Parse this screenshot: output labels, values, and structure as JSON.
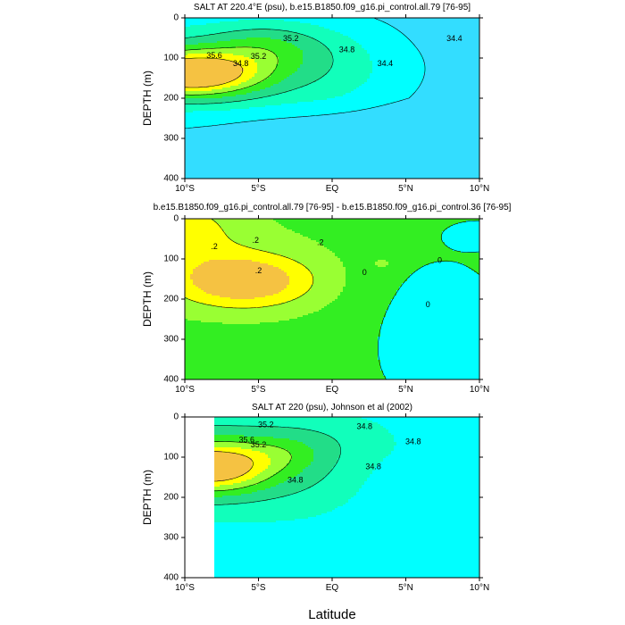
{
  "chart_data": [
    {
      "type": "contour",
      "title": "SALT AT 220.4°E (psu), b.e15.B1850.f09_g16.pi_control.all.79 [76-95]",
      "xlabel": "",
      "ylabel": "DEPTH (m)",
      "xticks": [
        "10°S",
        "5°S",
        "EQ",
        "5°N",
        "10°N"
      ],
      "xlim": [
        -10,
        10
      ],
      "yticks": [
        "0",
        "100",
        "200",
        "300",
        "400"
      ],
      "ylim": [
        400,
        0
      ],
      "contour_labels": [
        "35.6",
        "35.2",
        "35.2",
        "34.8",
        "34.8",
        "34.4",
        "34.4"
      ],
      "max_salinity_core": {
        "lat": -9.5,
        "depth": 140,
        "value": 35.8
      }
    },
    {
      "type": "contour",
      "title": "b.e15.B1850.f09_g16.pi_control.all.79 [76-95] - b.e15.B1850.f09_g16.pi_control.36 [76-95]",
      "xlabel": "",
      "ylabel": "DEPTH (m)",
      "xticks": [
        "10°S",
        "5°S",
        "EQ",
        "5°N",
        "10°N"
      ],
      "xlim": [
        -10,
        10
      ],
      "yticks": [
        "0",
        "100",
        "200",
        "300",
        "400"
      ],
      "ylim": [
        400,
        0
      ],
      "contour_labels": [
        ".2",
        ".2",
        ".2",
        ".2",
        "0",
        "0",
        "0"
      ],
      "max_difference_core": {
        "lat": -5.5,
        "depth": 155,
        "value": 0.5
      }
    },
    {
      "type": "contour",
      "title": "SALT AT 220 (psu), Johnson et al (2002)",
      "xlabel": "Latitude",
      "ylabel": "DEPTH (m)",
      "xticks": [
        "10°S",
        "5°S",
        "EQ",
        "5°N",
        "10°N"
      ],
      "xlim": [
        -10,
        10
      ],
      "yticks": [
        "0",
        "100",
        "200",
        "300",
        "400"
      ],
      "ylim": [
        400,
        0
      ],
      "contour_labels": [
        "35.2",
        "35.6",
        "35.2",
        "34.8",
        "34.8",
        "34.8",
        "34.8"
      ],
      "data_lat_range": [
        -8,
        10
      ],
      "max_salinity_core": {
        "lat": -7.8,
        "depth": 125,
        "value": 35.7
      }
    }
  ],
  "palette": {
    "high": "#f5c242",
    "yellow": "#ffff00",
    "lightgreen": "#99ff33",
    "green": "#33ee22",
    "seagreen": "#22dd88",
    "aqua": "#11ffbb",
    "cyan": "#00ffff",
    "skyblue": "#33ddff"
  }
}
